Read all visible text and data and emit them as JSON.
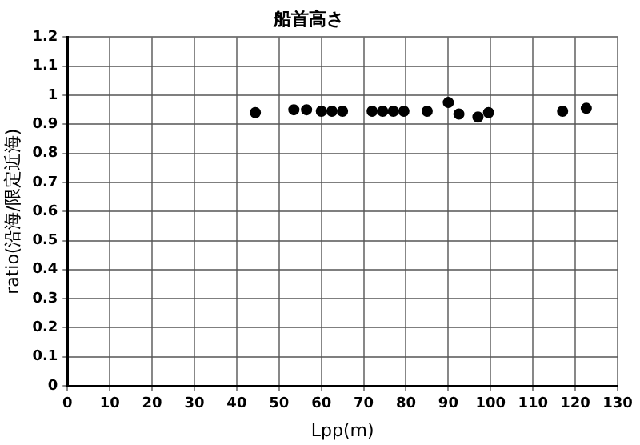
{
  "chart_data": {
    "type": "scatter",
    "title": "船首高さ",
    "xlabel": "Lpp(m)",
    "ylabel": "ratio(沿海/限定近海)",
    "x": [
      44.4,
      53.5,
      56.5,
      60,
      62.5,
      65,
      72,
      74.5,
      77,
      79.5,
      85,
      90,
      92.5,
      97,
      99.5,
      117,
      122.6
    ],
    "series": [
      {
        "color": "#000000",
        "values": [
          0.94,
          0.95,
          0.95,
          0.945,
          0.945,
          0.945,
          0.945,
          0.945,
          0.945,
          0.945,
          0.945,
          0.975,
          0.935,
          0.925,
          0.94,
          0.945,
          0.955
        ]
      }
    ],
    "xlim": [
      0,
      130
    ],
    "xticks": [
      0,
      10,
      20,
      30,
      40,
      50,
      60,
      70,
      80,
      90,
      100,
      110,
      120,
      130
    ],
    "ylim": [
      0,
      1.2
    ],
    "yticks": [
      0,
      {
        "value": 0.1,
        "label": "0.1"
      },
      {
        "value": 0.2,
        "label": "0.2"
      },
      {
        "value": 0.3,
        "label": "0.3"
      },
      {
        "value": 0.4,
        "label": "0.4"
      },
      {
        "value": 0.5,
        "label": "0.5"
      },
      {
        "value": 0.6,
        "label": "0.6"
      },
      {
        "value": 0.7,
        "label": "0.7"
      },
      {
        "value": 0.8,
        "label": "0.8"
      },
      {
        "value": 0.9,
        "label": "0.9"
      },
      1,
      {
        "value": 1.1,
        "label": "1.1"
      },
      {
        "value": 1.2,
        "label": "1.2"
      }
    ],
    "grid": true,
    "legend": false,
    "marker": "circle"
  }
}
